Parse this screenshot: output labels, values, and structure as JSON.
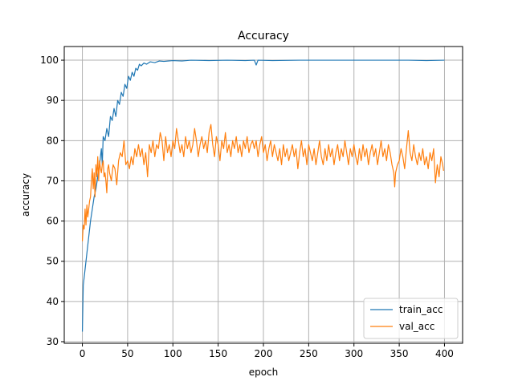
{
  "chart_data": {
    "type": "line",
    "title": "Accuracy",
    "xlabel": "epoch",
    "ylabel": "accuracy",
    "xlim": [
      -20,
      420
    ],
    "ylim": [
      29.6,
      103.4
    ],
    "xticks": [
      0,
      50,
      100,
      150,
      200,
      250,
      300,
      350,
      400
    ],
    "yticks": [
      30,
      40,
      50,
      60,
      70,
      80,
      90,
      100
    ],
    "grid": true,
    "legend_position": "lower-right",
    "series": [
      {
        "name": "train_acc",
        "color": "#1f77b4",
        "points": [
          [
            0,
            32.5
          ],
          [
            1,
            44
          ],
          [
            2,
            46
          ],
          [
            3,
            48
          ],
          [
            5,
            52
          ],
          [
            7,
            56
          ],
          [
            9,
            60
          ],
          [
            11,
            63
          ],
          [
            13,
            66
          ],
          [
            15,
            68
          ],
          [
            17,
            71
          ],
          [
            19,
            74
          ],
          [
            21,
            78
          ],
          [
            22,
            74
          ],
          [
            23,
            81
          ],
          [
            25,
            80
          ],
          [
            27,
            83
          ],
          [
            29,
            81
          ],
          [
            31,
            86
          ],
          [
            33,
            85
          ],
          [
            35,
            88
          ],
          [
            37,
            86
          ],
          [
            39,
            90
          ],
          [
            41,
            89
          ],
          [
            43,
            92
          ],
          [
            45,
            91
          ],
          [
            47,
            94
          ],
          [
            49,
            93
          ],
          [
            51,
            96
          ],
          [
            53,
            95
          ],
          [
            55,
            97
          ],
          [
            57,
            96
          ],
          [
            59,
            98
          ],
          [
            61,
            97.5
          ],
          [
            63,
            99
          ],
          [
            65,
            98.6
          ],
          [
            68,
            99.3
          ],
          [
            71,
            99
          ],
          [
            75,
            99.6
          ],
          [
            80,
            99.4
          ],
          [
            85,
            99.8
          ],
          [
            90,
            99.7
          ],
          [
            100,
            99.9
          ],
          [
            110,
            99.8
          ],
          [
            120,
            100
          ],
          [
            140,
            99.9
          ],
          [
            160,
            100
          ],
          [
            180,
            99.9
          ],
          [
            190,
            100
          ],
          [
            192,
            98.8
          ],
          [
            194,
            100
          ],
          [
            210,
            99.9
          ],
          [
            240,
            100
          ],
          [
            280,
            100
          ],
          [
            320,
            100
          ],
          [
            360,
            100
          ],
          [
            380,
            99.9
          ],
          [
            400,
            100
          ]
        ]
      },
      {
        "name": "val_acc",
        "color": "#ff7f0e",
        "points": [
          [
            0,
            55
          ],
          [
            1,
            59
          ],
          [
            2,
            58
          ],
          [
            3,
            63
          ],
          [
            4,
            59
          ],
          [
            5,
            64
          ],
          [
            6,
            61
          ],
          [
            7,
            63
          ],
          [
            8,
            65
          ],
          [
            9,
            66
          ],
          [
            10,
            70
          ],
          [
            11,
            73
          ],
          [
            12,
            68
          ],
          [
            13,
            72
          ],
          [
            14,
            66
          ],
          [
            15,
            74
          ],
          [
            16,
            71
          ],
          [
            17,
            76
          ],
          [
            18,
            70
          ],
          [
            19,
            75
          ],
          [
            20,
            73
          ],
          [
            21,
            72
          ],
          [
            22,
            74
          ],
          [
            23,
            75
          ],
          [
            24,
            71
          ],
          [
            25,
            72
          ],
          [
            26,
            70
          ],
          [
            27,
            67
          ],
          [
            28,
            73
          ],
          [
            29,
            74
          ],
          [
            30,
            72
          ],
          [
            32,
            70
          ],
          [
            34,
            74
          ],
          [
            36,
            73
          ],
          [
            38,
            69
          ],
          [
            40,
            75
          ],
          [
            42,
            77
          ],
          [
            44,
            76
          ],
          [
            46,
            80
          ],
          [
            48,
            74
          ],
          [
            50,
            75
          ],
          [
            52,
            73
          ],
          [
            54,
            76
          ],
          [
            56,
            74
          ],
          [
            58,
            78
          ],
          [
            60,
            76
          ],
          [
            62,
            79
          ],
          [
            64,
            76
          ],
          [
            66,
            78
          ],
          [
            68,
            74
          ],
          [
            70,
            77
          ],
          [
            72,
            71
          ],
          [
            74,
            79
          ],
          [
            76,
            77
          ],
          [
            78,
            80
          ],
          [
            80,
            76
          ],
          [
            82,
            79
          ],
          [
            84,
            78
          ],
          [
            86,
            82
          ],
          [
            88,
            80
          ],
          [
            90,
            75
          ],
          [
            92,
            81
          ],
          [
            94,
            77
          ],
          [
            96,
            79
          ],
          [
            98,
            76
          ],
          [
            100,
            80
          ],
          [
            102,
            78
          ],
          [
            104,
            83
          ],
          [
            106,
            80
          ],
          [
            108,
            77
          ],
          [
            110,
            79
          ],
          [
            112,
            76
          ],
          [
            114,
            81
          ],
          [
            116,
            78
          ],
          [
            118,
            80
          ],
          [
            120,
            77
          ],
          [
            122,
            79
          ],
          [
            124,
            83
          ],
          [
            126,
            80
          ],
          [
            128,
            76
          ],
          [
            130,
            79
          ],
          [
            132,
            81
          ],
          [
            134,
            78
          ],
          [
            136,
            80
          ],
          [
            138,
            77
          ],
          [
            140,
            82
          ],
          [
            142,
            84
          ],
          [
            144,
            79
          ],
          [
            146,
            76
          ],
          [
            148,
            81
          ],
          [
            150,
            79
          ],
          [
            152,
            75
          ],
          [
            154,
            80
          ],
          [
            156,
            78
          ],
          [
            158,
            82
          ],
          [
            160,
            77
          ],
          [
            162,
            79
          ],
          [
            164,
            76
          ],
          [
            166,
            80
          ],
          [
            168,
            78
          ],
          [
            170,
            81
          ],
          [
            172,
            77
          ],
          [
            174,
            79
          ],
          [
            176,
            76
          ],
          [
            178,
            80
          ],
          [
            180,
            78
          ],
          [
            182,
            81
          ],
          [
            184,
            77
          ],
          [
            186,
            79
          ],
          [
            188,
            80
          ],
          [
            190,
            78
          ],
          [
            192,
            80
          ],
          [
            194,
            76
          ],
          [
            196,
            79
          ],
          [
            198,
            81
          ],
          [
            200,
            77
          ],
          [
            202,
            79
          ],
          [
            204,
            75
          ],
          [
            206,
            78
          ],
          [
            208,
            80
          ],
          [
            210,
            76
          ],
          [
            212,
            79
          ],
          [
            214,
            77
          ],
          [
            216,
            75
          ],
          [
            218,
            78
          ],
          [
            220,
            74
          ],
          [
            222,
            79
          ],
          [
            224,
            76
          ],
          [
            226,
            78
          ],
          [
            228,
            75
          ],
          [
            230,
            77
          ],
          [
            232,
            79
          ],
          [
            234,
            76
          ],
          [
            236,
            78
          ],
          [
            238,
            73
          ],
          [
            240,
            77
          ],
          [
            242,
            80
          ],
          [
            244,
            76
          ],
          [
            246,
            78
          ],
          [
            248,
            74
          ],
          [
            250,
            79
          ],
          [
            252,
            77
          ],
          [
            254,
            75
          ],
          [
            256,
            78
          ],
          [
            258,
            74
          ],
          [
            260,
            77
          ],
          [
            262,
            80
          ],
          [
            264,
            76
          ],
          [
            266,
            74
          ],
          [
            268,
            78
          ],
          [
            270,
            75
          ],
          [
            272,
            79
          ],
          [
            274,
            76
          ],
          [
            276,
            78
          ],
          [
            278,
            74
          ],
          [
            280,
            77
          ],
          [
            282,
            79
          ],
          [
            284,
            75
          ],
          [
            286,
            78
          ],
          [
            288,
            76
          ],
          [
            290,
            80
          ],
          [
            292,
            77
          ],
          [
            294,
            74
          ],
          [
            296,
            78
          ],
          [
            298,
            76
          ],
          [
            300,
            79
          ],
          [
            302,
            76
          ],
          [
            304,
            74
          ],
          [
            306,
            78
          ],
          [
            308,
            75
          ],
          [
            310,
            79
          ],
          [
            312,
            76
          ],
          [
            314,
            78
          ],
          [
            316,
            74
          ],
          [
            318,
            77
          ],
          [
            320,
            79
          ],
          [
            322,
            76
          ],
          [
            324,
            78
          ],
          [
            326,
            74
          ],
          [
            328,
            77
          ],
          [
            330,
            80
          ],
          [
            332,
            76
          ],
          [
            334,
            78
          ],
          [
            336,
            75
          ],
          [
            338,
            79
          ],
          [
            340,
            77
          ],
          [
            342,
            74
          ],
          [
            344,
            72
          ],
          [
            345,
            68.5
          ],
          [
            346,
            72
          ],
          [
            348,
            74
          ],
          [
            350,
            75
          ],
          [
            352,
            78
          ],
          [
            354,
            76
          ],
          [
            356,
            73
          ],
          [
            358,
            78
          ],
          [
            360,
            82.5
          ],
          [
            362,
            77
          ],
          [
            364,
            75
          ],
          [
            366,
            79
          ],
          [
            368,
            76
          ],
          [
            370,
            74
          ],
          [
            372,
            77
          ],
          [
            374,
            75
          ],
          [
            376,
            78
          ],
          [
            378,
            74
          ],
          [
            380,
            76
          ],
          [
            382,
            73
          ],
          [
            384,
            77
          ],
          [
            386,
            75
          ],
          [
            388,
            78
          ],
          [
            390,
            69.5
          ],
          [
            392,
            74
          ],
          [
            394,
            71
          ],
          [
            396,
            76
          ],
          [
            398,
            74
          ],
          [
            399,
            72.5
          ]
        ]
      }
    ]
  }
}
